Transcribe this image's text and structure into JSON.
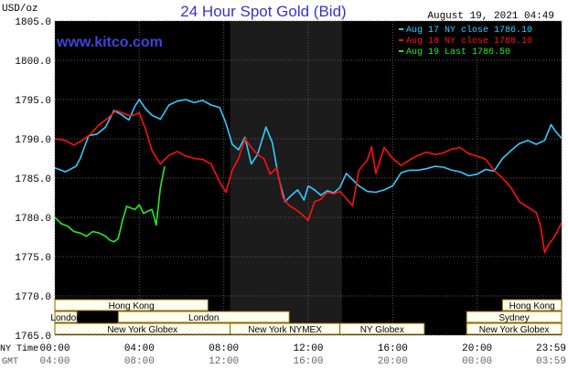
{
  "header": {
    "unit_label": "USD/oz",
    "title": "24 Hour Spot Gold (Bid)",
    "timestamp": "August 19, 2021 04:49",
    "watermark": "www.kitco.com"
  },
  "colors": {
    "background": "#ffffff",
    "plot_bg": "#000000",
    "plot_highlight": "#1c1c1c",
    "grid": "#5a5a5a",
    "title": "#3a33c8",
    "series_aug17": "#33ccff",
    "series_aug18": "#ff1010",
    "series_aug19": "#22ee22",
    "session_fill": "#fffff0",
    "session_border": "#8a6a00"
  },
  "chart_data": {
    "type": "line",
    "title": "24 Hour Spot Gold (Bid)",
    "ylabel": "USD/oz",
    "ylim": [
      1765.0,
      1805.0
    ],
    "y_ticks": [
      1765.0,
      1770.0,
      1775.0,
      1780.0,
      1785.0,
      1790.0,
      1795.0,
      1800.0,
      1805.0
    ],
    "y_tick_labels": [
      "1765.0",
      "1770.0",
      "1775.0",
      "1780.0",
      "1785.0",
      "1790.0",
      "1795.0",
      "1800.0",
      "1805.0"
    ],
    "xlim": [
      0,
      24
    ],
    "x_ticks": [
      0,
      4,
      8,
      12,
      16,
      20,
      24
    ],
    "x_tick_labels_ny": [
      "00:00",
      "04:00",
      "08:00",
      "12:00",
      "16:00",
      "20:00",
      "23:59"
    ],
    "x_tick_labels_gmt": [
      "04:00",
      "08:00",
      "12:00",
      "16:00",
      "20:00",
      "00:00",
      "03:59"
    ],
    "x_axis_label_ny": "NY Time",
    "x_axis_label_gmt": "GMT",
    "grid": true,
    "highlight_band": [
      8.3,
      13.6
    ],
    "legend": {
      "placement": "top-right",
      "entries": [
        "Aug 17 NY close 1786.10",
        "Aug 18 NY close 1788.10",
        "Aug 19 Last 1786.50"
      ]
    },
    "series": [
      {
        "name": "Aug 17 NY close 1786.10",
        "color": "#33ccff",
        "x": [
          0,
          0.5,
          1.0,
          1.2,
          1.6,
          2.0,
          2.4,
          2.8,
          3.2,
          3.5,
          3.8,
          4.0,
          4.3,
          4.6,
          5.0,
          5.4,
          5.8,
          6.2,
          6.6,
          7.0,
          7.4,
          7.8,
          8.1,
          8.4,
          8.7,
          9.0,
          9.3,
          9.6,
          10.0,
          10.3,
          10.6,
          10.9,
          11.2,
          11.5,
          11.8,
          12.0,
          12.3,
          12.6,
          12.9,
          13.2,
          13.5,
          13.8,
          14.1,
          14.4,
          14.8,
          15.2,
          15.6,
          16.0,
          16.4,
          16.8,
          17.2,
          17.6,
          18.0,
          18.4,
          18.8,
          19.2,
          19.6,
          20.0,
          20.4,
          20.8,
          21.2,
          21.6,
          22.0,
          22.4,
          22.8,
          23.2,
          23.5,
          23.7,
          23.99
        ],
        "values": [
          1786.3,
          1785.8,
          1786.5,
          1787.5,
          1790.4,
          1790.6,
          1791.5,
          1793.6,
          1793.0,
          1792.4,
          1794.2,
          1795.0,
          1793.8,
          1793.0,
          1792.5,
          1794.3,
          1794.8,
          1795.0,
          1794.6,
          1794.9,
          1794.3,
          1794.0,
          1792.0,
          1789.3,
          1788.6,
          1790.2,
          1786.8,
          1788.0,
          1791.5,
          1789.5,
          1785.0,
          1782.0,
          1782.8,
          1783.5,
          1782.2,
          1784.0,
          1783.5,
          1782.8,
          1783.4,
          1783.1,
          1783.8,
          1785.6,
          1784.8,
          1784.0,
          1783.3,
          1783.2,
          1783.5,
          1784.0,
          1785.7,
          1786.0,
          1786.0,
          1786.2,
          1786.5,
          1786.4,
          1786.0,
          1785.8,
          1785.3,
          1785.5,
          1786.1,
          1785.9,
          1787.5,
          1788.5,
          1789.4,
          1789.8,
          1789.3,
          1789.8,
          1791.8,
          1791.0,
          1790.1
        ]
      },
      {
        "name": "Aug 18 NY close 1788.10",
        "color": "#ff1010",
        "x": [
          0,
          0.5,
          0.9,
          1.3,
          1.7,
          2.1,
          2.5,
          2.9,
          3.3,
          3.6,
          4.0,
          4.3,
          4.6,
          5.0,
          5.4,
          5.8,
          6.2,
          6.6,
          7.0,
          7.4,
          7.8,
          8.1,
          8.4,
          8.7,
          9.0,
          9.3,
          9.6,
          9.9,
          10.2,
          10.5,
          10.8,
          11.1,
          11.4,
          11.7,
          12.0,
          12.3,
          12.6,
          12.9,
          13.2,
          13.5,
          13.8,
          14.1,
          14.4,
          14.8,
          15.0,
          15.2,
          15.6,
          16.0,
          16.4,
          16.8,
          17.2,
          17.6,
          18.0,
          18.4,
          18.8,
          19.2,
          19.6,
          20.0,
          20.4,
          20.8,
          21.2,
          21.6,
          22.0,
          22.4,
          22.8,
          23.0,
          23.2,
          23.4,
          23.6,
          23.8,
          23.99
        ],
        "values": [
          1790.0,
          1789.8,
          1789.2,
          1789.8,
          1790.6,
          1791.8,
          1792.6,
          1793.6,
          1793.2,
          1792.9,
          1793.3,
          1791.2,
          1788.5,
          1786.8,
          1787.9,
          1788.4,
          1787.8,
          1787.5,
          1787.4,
          1786.8,
          1784.5,
          1783.2,
          1786.0,
          1787.5,
          1790.0,
          1788.9,
          1788.0,
          1787.5,
          1785.5,
          1786.3,
          1782.5,
          1781.5,
          1781.0,
          1780.4,
          1779.6,
          1782.0,
          1782.3,
          1783.2,
          1783.0,
          1783.3,
          1782.4,
          1781.5,
          1786.0,
          1787.3,
          1789.0,
          1785.6,
          1788.9,
          1787.5,
          1786.6,
          1787.3,
          1787.9,
          1788.3,
          1788.0,
          1788.2,
          1788.7,
          1788.9,
          1788.1,
          1787.8,
          1787.4,
          1786.0,
          1785.0,
          1783.8,
          1782.0,
          1781.3,
          1780.6,
          1779.0,
          1775.5,
          1776.6,
          1777.3,
          1778.2,
          1779.3
        ]
      },
      {
        "name": "Aug 19 Last 1786.50",
        "color": "#22ee22",
        "x": [
          0,
          0.3,
          0.6,
          0.9,
          1.2,
          1.5,
          1.8,
          2.1,
          2.4,
          2.6,
          2.8,
          3.0,
          3.2,
          3.4,
          3.6,
          3.8,
          4.0,
          4.2,
          4.4,
          4.6,
          4.8,
          5.0,
          5.2
        ],
        "values": [
          1780.0,
          1779.2,
          1778.9,
          1778.2,
          1778.0,
          1777.6,
          1778.2,
          1778.0,
          1777.6,
          1777.1,
          1776.9,
          1777.3,
          1779.6,
          1781.4,
          1781.2,
          1781.0,
          1781.6,
          1780.5,
          1780.8,
          1781.0,
          1779.0,
          1783.8,
          1786.5
        ]
      }
    ]
  },
  "sessions": {
    "row1": [
      {
        "label": "Hong Kong",
        "start": 0,
        "end": 7.25
      },
      {
        "label": "Hong Kong",
        "start": 21.2,
        "end": 24
      }
    ],
    "row2": [
      {
        "label": "London",
        "start": 0,
        "end": 1.05
      },
      {
        "label": "London",
        "start": 3.0,
        "end": 11.1
      },
      {
        "label": "Sydney",
        "start": 19.5,
        "end": 24
      }
    ],
    "row3": [
      {
        "label": "New York Globex",
        "start": 0,
        "end": 8.3
      },
      {
        "label": "New York NYMEX",
        "start": 8.3,
        "end": 13.5
      },
      {
        "label": "NY Globex",
        "start": 13.5,
        "end": 17.5
      },
      {
        "label": "New York Globex",
        "start": 19.5,
        "end": 24
      }
    ]
  }
}
